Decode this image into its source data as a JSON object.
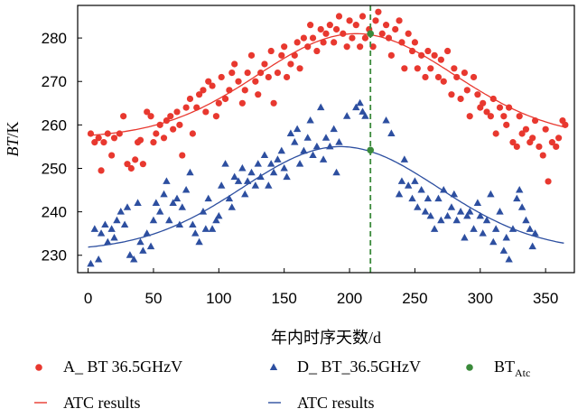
{
  "chart_data": {
    "type": "scatter",
    "xlabel": "年内时序天数/d",
    "ylabel_main": "BT",
    "ylabel_unit": "/K",
    "xlim": [
      -8,
      372
    ],
    "ylim": [
      226,
      287.5
    ],
    "xticks": [
      0,
      50,
      100,
      150,
      200,
      250,
      300,
      350
    ],
    "yticks": [
      230,
      240,
      250,
      260,
      270,
      280
    ],
    "grid": false,
    "legend_position": "bottom",
    "vline": {
      "x": 216,
      "color": "#3a8a3a",
      "style": "dashed"
    },
    "series": [
      {
        "name": "A_ BT 36.5GHzV",
        "marker": "circle",
        "color": "#e8382f",
        "points": [
          [
            2,
            258
          ],
          [
            5,
            256
          ],
          [
            8,
            257
          ],
          [
            10,
            249.5
          ],
          [
            12,
            256
          ],
          [
            15,
            258
          ],
          [
            18,
            253
          ],
          [
            20,
            257
          ],
          [
            24,
            258
          ],
          [
            27,
            262
          ],
          [
            30,
            251
          ],
          [
            33,
            250
          ],
          [
            36,
            252
          ],
          [
            38,
            256
          ],
          [
            40,
            256.5
          ],
          [
            42,
            251
          ],
          [
            45,
            263
          ],
          [
            48,
            262
          ],
          [
            50,
            256
          ],
          [
            52,
            258
          ],
          [
            55,
            260
          ],
          [
            58,
            257
          ],
          [
            60,
            261
          ],
          [
            63,
            262
          ],
          [
            65,
            259
          ],
          [
            68,
            263
          ],
          [
            70,
            260
          ],
          [
            72,
            253
          ],
          [
            75,
            264
          ],
          [
            78,
            266
          ],
          [
            80,
            258
          ],
          [
            83,
            264
          ],
          [
            85,
            267
          ],
          [
            88,
            268
          ],
          [
            90,
            263
          ],
          [
            92,
            270
          ],
          [
            95,
            269
          ],
          [
            98,
            262
          ],
          [
            100,
            265
          ],
          [
            102,
            271
          ],
          [
            105,
            266
          ],
          [
            108,
            268
          ],
          [
            110,
            272
          ],
          [
            112,
            274
          ],
          [
            115,
            270
          ],
          [
            118,
            265
          ],
          [
            120,
            268
          ],
          [
            122,
            272
          ],
          [
            125,
            276
          ],
          [
            128,
            270
          ],
          [
            130,
            267
          ],
          [
            132,
            272
          ],
          [
            135,
            274
          ],
          [
            138,
            271
          ],
          [
            140,
            277
          ],
          [
            142,
            265
          ],
          [
            145,
            272
          ],
          [
            148,
            276
          ],
          [
            150,
            278
          ],
          [
            152,
            271
          ],
          [
            155,
            274
          ],
          [
            158,
            276
          ],
          [
            160,
            279
          ],
          [
            162,
            273
          ],
          [
            165,
            280
          ],
          [
            168,
            278
          ],
          [
            170,
            283
          ],
          [
            172,
            280
          ],
          [
            175,
            277
          ],
          [
            178,
            282
          ],
          [
            180,
            279
          ],
          [
            182,
            281
          ],
          [
            185,
            283
          ],
          [
            188,
            279
          ],
          [
            190,
            282
          ],
          [
            192,
            285
          ],
          [
            195,
            281
          ],
          [
            198,
            278
          ],
          [
            200,
            284
          ],
          [
            202,
            280
          ],
          [
            205,
            283
          ],
          [
            208,
            278
          ],
          [
            210,
            285
          ],
          [
            212,
            280
          ],
          [
            215,
            282
          ],
          [
            218,
            278
          ],
          [
            220,
            284
          ],
          [
            222,
            286
          ],
          [
            225,
            281
          ],
          [
            228,
            283
          ],
          [
            230,
            280
          ],
          [
            232,
            276
          ],
          [
            235,
            282
          ],
          [
            238,
            284
          ],
          [
            240,
            279
          ],
          [
            242,
            273
          ],
          [
            245,
            281
          ],
          [
            248,
            277
          ],
          [
            250,
            279
          ],
          [
            252,
            273
          ],
          [
            255,
            276
          ],
          [
            258,
            271
          ],
          [
            260,
            277
          ],
          [
            262,
            273
          ],
          [
            265,
            276
          ],
          [
            268,
            271
          ],
          [
            270,
            275
          ],
          [
            272,
            270
          ],
          [
            275,
            277
          ],
          [
            278,
            267
          ],
          [
            280,
            273
          ],
          [
            282,
            271
          ],
          [
            285,
            266
          ],
          [
            288,
            272
          ],
          [
            290,
            268
          ],
          [
            292,
            262
          ],
          [
            295,
            271
          ],
          [
            298,
            267
          ],
          [
            300,
            264
          ],
          [
            302,
            265
          ],
          [
            305,
            263
          ],
          [
            308,
            262
          ],
          [
            310,
            266
          ],
          [
            312,
            258
          ],
          [
            315,
            264
          ],
          [
            318,
            262
          ],
          [
            320,
            260
          ],
          [
            322,
            264
          ],
          [
            325,
            256
          ],
          [
            328,
            255
          ],
          [
            330,
            262
          ],
          [
            332,
            258
          ],
          [
            335,
            259
          ],
          [
            338,
            256
          ],
          [
            340,
            257
          ],
          [
            342,
            261
          ],
          [
            345,
            255
          ],
          [
            348,
            253
          ],
          [
            350,
            259
          ],
          [
            352,
            247
          ],
          [
            355,
            256
          ],
          [
            358,
            255
          ],
          [
            360,
            257
          ],
          [
            363,
            261
          ],
          [
            365,
            260
          ]
        ]
      },
      {
        "name": "D_ BT_36.5GHzV",
        "marker": "triangle",
        "color": "#2d4fa0",
        "points": [
          [
            2,
            228
          ],
          [
            5,
            236
          ],
          [
            8,
            229
          ],
          [
            10,
            235
          ],
          [
            13,
            237
          ],
          [
            15,
            233
          ],
          [
            18,
            236
          ],
          [
            20,
            234
          ],
          [
            22,
            238
          ],
          [
            25,
            240
          ],
          [
            28,
            237
          ],
          [
            30,
            241
          ],
          [
            32,
            230
          ],
          [
            35,
            229
          ],
          [
            38,
            242
          ],
          [
            40,
            233
          ],
          [
            42,
            231
          ],
          [
            45,
            235
          ],
          [
            48,
            232
          ],
          [
            50,
            238
          ],
          [
            52,
            242
          ],
          [
            55,
            240
          ],
          [
            58,
            244
          ],
          [
            60,
            247
          ],
          [
            62,
            238
          ],
          [
            65,
            242
          ],
          [
            68,
            243
          ],
          [
            70,
            237
          ],
          [
            72,
            241
          ],
          [
            75,
            245
          ],
          [
            78,
            249
          ],
          [
            80,
            237
          ],
          [
            82,
            235
          ],
          [
            85,
            233
          ],
          [
            88,
            240
          ],
          [
            90,
            236
          ],
          [
            92,
            243
          ],
          [
            95,
            236
          ],
          [
            98,
            238
          ],
          [
            100,
            239
          ],
          [
            102,
            246
          ],
          [
            105,
            251
          ],
          [
            108,
            243
          ],
          [
            110,
            241
          ],
          [
            112,
            248
          ],
          [
            115,
            247
          ],
          [
            118,
            250
          ],
          [
            120,
            244
          ],
          [
            122,
            247
          ],
          [
            125,
            249
          ],
          [
            128,
            246
          ],
          [
            130,
            251
          ],
          [
            132,
            248
          ],
          [
            135,
            253
          ],
          [
            138,
            246
          ],
          [
            140,
            251
          ],
          [
            142,
            249
          ],
          [
            145,
            252
          ],
          [
            148,
            254
          ],
          [
            150,
            250
          ],
          [
            152,
            248
          ],
          [
            155,
            258
          ],
          [
            158,
            256
          ],
          [
            160,
            259
          ],
          [
            162,
            251
          ],
          [
            165,
            254
          ],
          [
            168,
            257
          ],
          [
            170,
            261
          ],
          [
            172,
            253
          ],
          [
            175,
            255
          ],
          [
            178,
            264
          ],
          [
            180,
            252
          ],
          [
            182,
            257
          ],
          [
            185,
            255
          ],
          [
            188,
            259
          ],
          [
            190,
            249
          ],
          [
            192,
            256
          ],
          [
            198,
            262
          ],
          [
            205,
            264
          ],
          [
            208,
            265
          ],
          [
            210,
            263
          ],
          [
            212,
            262
          ],
          [
            228,
            261
          ],
          [
            232,
            258
          ],
          [
            238,
            244
          ],
          [
            240,
            247
          ],
          [
            242,
            252
          ],
          [
            245,
            246
          ],
          [
            248,
            243
          ],
          [
            250,
            247
          ],
          [
            252,
            241
          ],
          [
            255,
            245
          ],
          [
            258,
            240
          ],
          [
            260,
            243
          ],
          [
            262,
            239
          ],
          [
            265,
            236
          ],
          [
            268,
            243
          ],
          [
            270,
            238
          ],
          [
            272,
            245
          ],
          [
            275,
            239
          ],
          [
            278,
            241
          ],
          [
            280,
            244
          ],
          [
            282,
            238
          ],
          [
            285,
            240
          ],
          [
            288,
            234
          ],
          [
            290,
            239
          ],
          [
            292,
            240
          ],
          [
            295,
            236
          ],
          [
            298,
            242
          ],
          [
            300,
            239
          ],
          [
            302,
            235
          ],
          [
            305,
            238
          ],
          [
            308,
            244
          ],
          [
            310,
            233
          ],
          [
            312,
            236
          ],
          [
            315,
            240
          ],
          [
            318,
            231
          ],
          [
            320,
            234
          ],
          [
            322,
            229
          ],
          [
            325,
            236
          ],
          [
            328,
            243
          ],
          [
            330,
            245
          ],
          [
            332,
            241
          ],
          [
            335,
            238
          ],
          [
            338,
            236
          ],
          [
            340,
            232
          ],
          [
            342,
            235
          ]
        ]
      },
      {
        "name": "BT",
        "name_sub": "Atc",
        "marker": "dot",
        "color": "#3a8a3a",
        "points": [
          [
            216,
            281
          ],
          [
            216,
            254.2
          ]
        ]
      },
      {
        "name": "ATC results",
        "marker": "line",
        "color": "#e8382f",
        "fit": {
          "mean": 257,
          "amplitude": 24,
          "peak_day": 205,
          "width": 75
        }
      },
      {
        "name": "ATC results",
        "marker": "line",
        "color": "#2d4fa0",
        "fit": {
          "mean": 231,
          "amplitude": 24,
          "peak_day": 193,
          "width": 75
        }
      }
    ]
  }
}
